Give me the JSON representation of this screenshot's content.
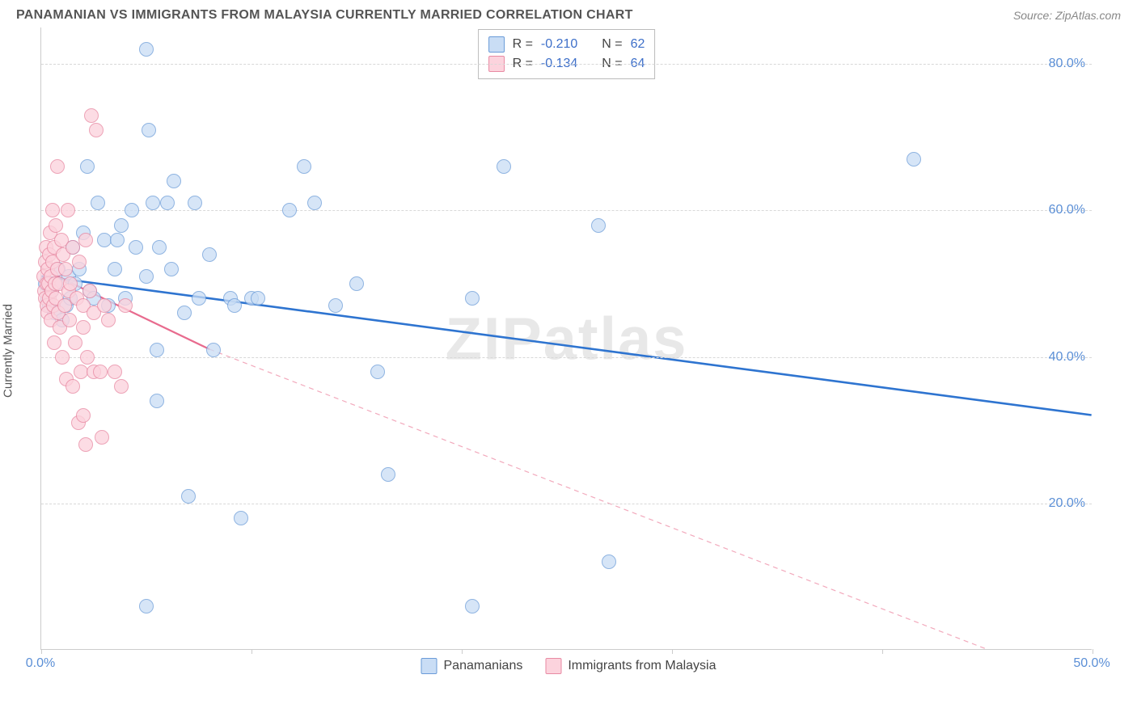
{
  "title": "PANAMANIAN VS IMMIGRANTS FROM MALAYSIA CURRENTLY MARRIED CORRELATION CHART",
  "source_label": "Source: ZipAtlas.com",
  "watermark": "ZIPatlas",
  "y_axis_label": "Currently Married",
  "chart": {
    "type": "scatter",
    "background_color": "#ffffff",
    "grid_color": "#d8d8d8",
    "axis_color": "#cccccc",
    "tick_label_color": "#5b8fd6",
    "xlim": [
      0,
      50
    ],
    "ylim": [
      0,
      85
    ],
    "x_ticks": [
      0,
      10,
      20,
      30,
      40,
      50
    ],
    "x_tick_labels": {
      "0": "0.0%",
      "50": "50.0%"
    },
    "y_ticks": [
      20,
      40,
      60,
      80
    ],
    "y_tick_labels": {
      "20": "20.0%",
      "40": "40.0%",
      "60": "60.0%",
      "80": "80.0%"
    },
    "marker_radius": 9,
    "marker_border_width": 1.4,
    "series": [
      {
        "name": "Panamanians",
        "fill": "#c9ddf5",
        "stroke": "#6a9bd8",
        "fill_opacity": 0.75,
        "trend": {
          "x1": 0,
          "y1": 51,
          "x2": 50,
          "y2": 32,
          "stroke": "#2e74d0",
          "width": 2.6,
          "dash": "none"
        },
        "r_value": "-0.210",
        "n_value": "62",
        "points": [
          [
            0.2,
            50
          ],
          [
            0.3,
            48
          ],
          [
            0.4,
            47
          ],
          [
            0.5,
            49
          ],
          [
            0.6,
            46
          ],
          [
            0.7,
            50
          ],
          [
            0.8,
            52
          ],
          [
            1.0,
            45
          ],
          [
            1.2,
            47
          ],
          [
            1.3,
            51
          ],
          [
            1.4,
            48
          ],
          [
            1.5,
            55
          ],
          [
            1.6,
            50
          ],
          [
            1.8,
            52
          ],
          [
            2.0,
            57
          ],
          [
            2.2,
            66
          ],
          [
            2.3,
            49
          ],
          [
            2.5,
            48
          ],
          [
            2.7,
            61
          ],
          [
            3.0,
            56
          ],
          [
            3.2,
            47
          ],
          [
            3.5,
            52
          ],
          [
            3.6,
            56
          ],
          [
            3.8,
            58
          ],
          [
            4.0,
            48
          ],
          [
            4.3,
            60
          ],
          [
            4.5,
            55
          ],
          [
            5.0,
            82
          ],
          [
            5.0,
            51
          ],
          [
            5.1,
            71
          ],
          [
            5.3,
            61
          ],
          [
            5.5,
            41
          ],
          [
            5.5,
            34
          ],
          [
            5.0,
            6
          ],
          [
            5.6,
            55
          ],
          [
            6.0,
            61
          ],
          [
            6.2,
            52
          ],
          [
            6.3,
            64
          ],
          [
            6.8,
            46
          ],
          [
            7.0,
            21
          ],
          [
            7.3,
            61
          ],
          [
            7.5,
            48
          ],
          [
            8.0,
            54
          ],
          [
            8.2,
            41
          ],
          [
            9.0,
            48
          ],
          [
            9.2,
            47
          ],
          [
            9.5,
            18
          ],
          [
            10.0,
            48
          ],
          [
            10.3,
            48
          ],
          [
            11.8,
            60
          ],
          [
            12.5,
            66
          ],
          [
            13.0,
            61
          ],
          [
            14.0,
            47
          ],
          [
            15.0,
            50
          ],
          [
            16.0,
            38
          ],
          [
            16.5,
            24
          ],
          [
            20.5,
            48
          ],
          [
            20.5,
            6
          ],
          [
            22.0,
            66
          ],
          [
            27.0,
            12
          ],
          [
            26.5,
            58
          ],
          [
            41.5,
            67
          ]
        ]
      },
      {
        "name": "Immigrants from Malaysia",
        "fill": "#fcd3dd",
        "stroke": "#e88aa3",
        "fill_opacity": 0.78,
        "trend_solid": {
          "x1": 0,
          "y1": 52,
          "x2": 8,
          "y2": 41,
          "stroke": "#e86b8e",
          "width": 2.2
        },
        "trend_dashed": {
          "x1": 8,
          "y1": 41,
          "x2": 45,
          "y2": 0,
          "stroke": "#f2a9bc",
          "width": 1.2,
          "dash": "6 5"
        },
        "r_value": "-0.134",
        "n_value": "64",
        "points": [
          [
            0.1,
            51
          ],
          [
            0.15,
            49
          ],
          [
            0.18,
            53
          ],
          [
            0.2,
            48
          ],
          [
            0.22,
            55
          ],
          [
            0.25,
            47
          ],
          [
            0.28,
            50
          ],
          [
            0.3,
            52
          ],
          [
            0.32,
            46
          ],
          [
            0.35,
            50
          ],
          [
            0.38,
            54
          ],
          [
            0.4,
            48
          ],
          [
            0.42,
            57
          ],
          [
            0.45,
            51
          ],
          [
            0.48,
            45
          ],
          [
            0.5,
            49
          ],
          [
            0.52,
            53
          ],
          [
            0.55,
            60
          ],
          [
            0.58,
            47
          ],
          [
            0.6,
            55
          ],
          [
            0.62,
            42
          ],
          [
            0.65,
            50
          ],
          [
            0.68,
            48
          ],
          [
            0.7,
            58
          ],
          [
            0.75,
            66
          ],
          [
            0.78,
            52
          ],
          [
            0.8,
            46
          ],
          [
            0.85,
            50
          ],
          [
            0.9,
            44
          ],
          [
            0.95,
            56
          ],
          [
            1.0,
            40
          ],
          [
            1.05,
            54
          ],
          [
            1.1,
            47
          ],
          [
            1.15,
            52
          ],
          [
            1.2,
            37
          ],
          [
            1.25,
            60
          ],
          [
            1.3,
            49
          ],
          [
            1.35,
            45
          ],
          [
            1.4,
            50
          ],
          [
            1.5,
            36
          ],
          [
            1.5,
            55
          ],
          [
            1.6,
            42
          ],
          [
            1.7,
            48
          ],
          [
            1.75,
            31
          ],
          [
            1.8,
            53
          ],
          [
            1.9,
            38
          ],
          [
            2.0,
            32
          ],
          [
            2.0,
            44
          ],
          [
            2.0,
            47
          ],
          [
            2.1,
            56
          ],
          [
            2.2,
            40
          ],
          [
            2.1,
            28
          ],
          [
            2.3,
            49
          ],
          [
            2.4,
            73
          ],
          [
            2.5,
            38
          ],
          [
            2.5,
            46
          ],
          [
            2.6,
            71
          ],
          [
            2.8,
            38
          ],
          [
            2.9,
            29
          ],
          [
            3.0,
            47
          ],
          [
            3.2,
            45
          ],
          [
            3.5,
            38
          ],
          [
            3.8,
            36
          ],
          [
            4.0,
            47
          ]
        ]
      }
    ]
  },
  "legend_bottom": {
    "items": [
      {
        "label": "Panamanians",
        "fill": "#c9ddf5",
        "stroke": "#6a9bd8"
      },
      {
        "label": "Immigrants from Malaysia",
        "fill": "#fcd3dd",
        "stroke": "#e88aa3"
      }
    ]
  },
  "stat_legend_labels": {
    "r": "R =",
    "n": "N ="
  }
}
